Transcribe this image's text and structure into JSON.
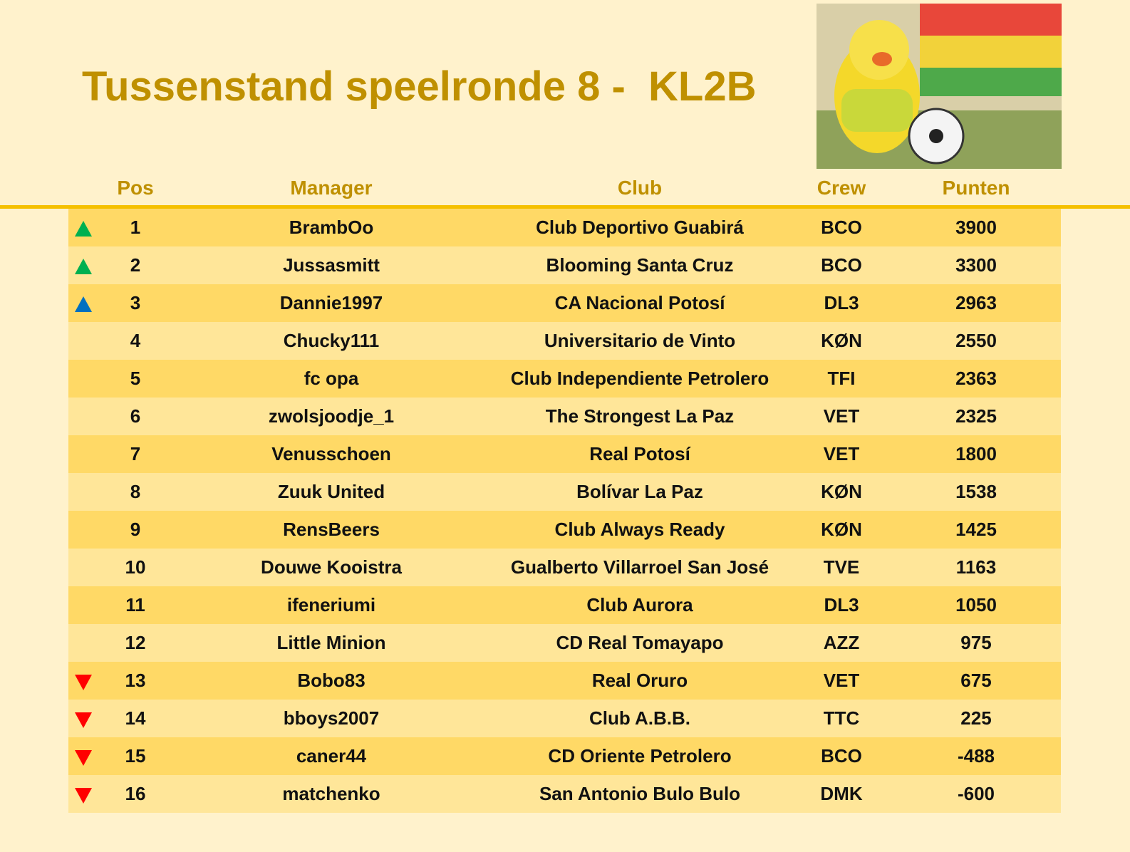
{
  "header": {
    "title": "Tussenstand speelronde 8 -  KL2B"
  },
  "table": {
    "columns": [
      "Pos",
      "Manager",
      "Club",
      "Crew",
      "Punten"
    ],
    "rows": [
      [
        1,
        "BrambOo",
        "Club Deportivo Guabirá",
        "BCO",
        3900
      ],
      [
        2,
        "Jussasmitt",
        "Blooming Santa Cruz",
        "BCO",
        3300
      ],
      [
        3,
        "Dannie1997",
        "CA Nacional Potosí",
        "DL3",
        2963
      ],
      [
        4,
        "Chucky111",
        "Universitario de Vinto",
        "KØN",
        2550
      ],
      [
        5,
        "fc opa",
        "Club Independiente Petrolero",
        "TFI",
        2363
      ],
      [
        6,
        "zwolsjoodje_1",
        "The Strongest La Paz",
        "VET",
        2325
      ],
      [
        7,
        "Venusschoen",
        "Real Potosí",
        "VET",
        1800
      ],
      [
        8,
        "Zuuk United",
        "Bolívar La Paz",
        "KØN",
        1538
      ],
      [
        9,
        "RensBeers",
        "Club Always Ready",
        "KØN",
        1425
      ],
      [
        10,
        "Douwe Kooistra",
        "Gualberto Villarroel San José",
        "TVE",
        1163
      ],
      [
        11,
        "ifeneriumi",
        "Club Aurora",
        "DL3",
        1050
      ],
      [
        12,
        "Little Minion",
        "CD Real Tomayapo",
        "AZZ",
        975
      ],
      [
        13,
        "Bobo83",
        "Real Oruro",
        "VET",
        675
      ],
      [
        14,
        "bboys2007",
        "Club A.B.B.",
        "TTC",
        225
      ],
      [
        15,
        "caner44",
        "CD Oriente Petrolero",
        "BCO",
        -488
      ],
      [
        16,
        "matchenko",
        "San Antonio Bulo Bulo",
        "DMK",
        -600
      ]
    ]
  }
}
